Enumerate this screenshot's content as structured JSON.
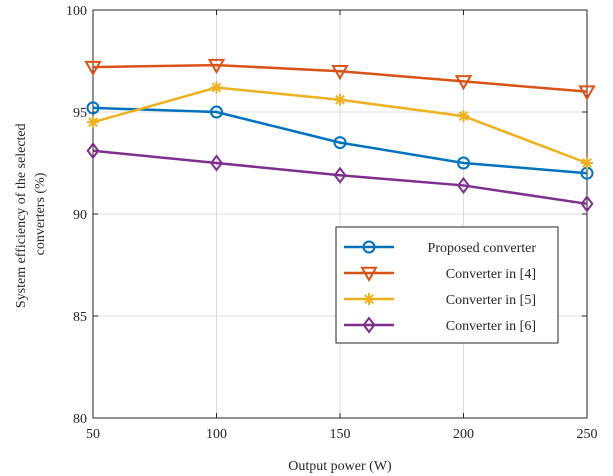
{
  "chart_data": {
    "type": "line",
    "title": "",
    "xlabel": "Output power (W)",
    "ylabel_lines": [
      "System efficiency of the selected",
      "converters (%)"
    ],
    "x": [
      50,
      100,
      150,
      200,
      250
    ],
    "xlim": [
      50,
      250
    ],
    "ylim": [
      80,
      100
    ],
    "xticks": [
      50,
      100,
      150,
      200,
      250
    ],
    "yticks": [
      80,
      85,
      90,
      95,
      100
    ],
    "grid": true,
    "legend_position": "center-right",
    "series": [
      {
        "name": "Proposed converter",
        "color": "#0072BD",
        "marker": "circle",
        "values": [
          95.2,
          95.0,
          93.5,
          92.5,
          92.0
        ]
      },
      {
        "name": "Converter in [4]",
        "color": "#D95319",
        "marker": "triangle-down",
        "values": [
          97.2,
          97.3,
          97.0,
          96.5,
          96.0
        ]
      },
      {
        "name": "Converter in [5]",
        "color": "#EDB120",
        "marker": "asterisk",
        "values": [
          94.5,
          96.2,
          95.6,
          94.8,
          92.5
        ]
      },
      {
        "name": "Converter in [6]",
        "color": "#7E2F8E",
        "marker": "diamond",
        "values": [
          93.1,
          92.5,
          91.9,
          91.4,
          90.5
        ]
      }
    ]
  }
}
